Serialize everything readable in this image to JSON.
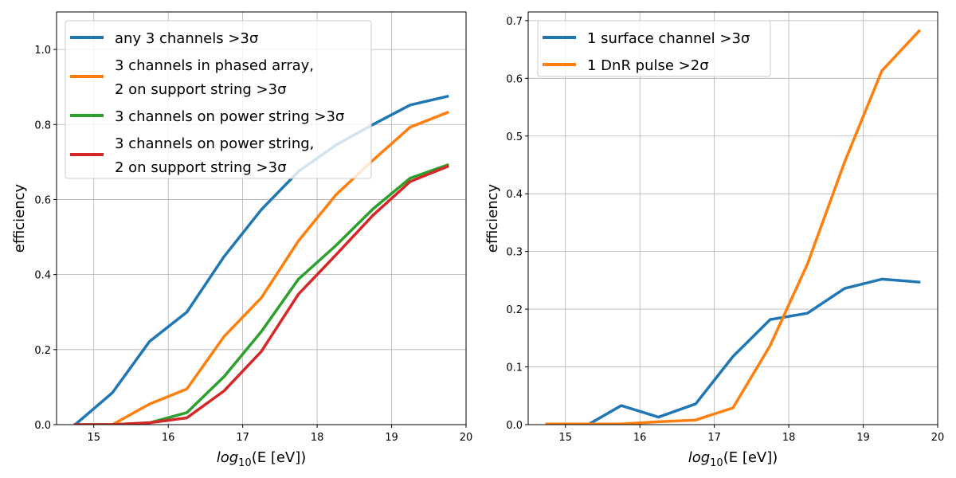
{
  "chart_data": [
    {
      "type": "line",
      "title": "",
      "xlabel": "log10(E [eV])",
      "xlabel_parts": {
        "base": "log",
        "sub": "10",
        "rest": "(E [eV])"
      },
      "ylabel": "efficiency",
      "xlim": [
        14.5,
        20
      ],
      "ylim": [
        0,
        1.1
      ],
      "xticks": [
        15,
        16,
        17,
        18,
        19,
        20
      ],
      "yticks": [
        0.0,
        0.2,
        0.4,
        0.6,
        0.8,
        1.0
      ],
      "ytick_labels": [
        "0.0",
        "0.2",
        "0.4",
        "0.6",
        "0.8",
        "1.0"
      ],
      "grid": true,
      "legend_position": "top-left",
      "x": [
        14.75,
        15.25,
        15.75,
        16.25,
        16.75,
        17.25,
        17.75,
        18.25,
        18.75,
        19.25,
        19.75
      ],
      "series": [
        {
          "name": "any 3 channels >3σ",
          "name_lines": [
            "any 3 channels >3σ"
          ],
          "color": "#1f77b4",
          "values": [
            0.0,
            0.085,
            0.222,
            0.3,
            0.448,
            0.573,
            0.675,
            0.745,
            0.8,
            0.852,
            0.875
          ]
        },
        {
          "name": "3 channels in phased array, 2 on support string >3σ",
          "name_lines": [
            "3 channels in phased array,",
            "2 on support string >3σ"
          ],
          "color": "#ff7f0e",
          "values": [
            0.0,
            0.0,
            0.055,
            0.095,
            0.235,
            0.338,
            0.49,
            0.612,
            0.705,
            0.793,
            0.832
          ]
        },
        {
          "name": "3 channels on power string >3σ",
          "name_lines": [
            "3 channels on power string >3σ"
          ],
          "color": "#2ca02c",
          "values": [
            0.0,
            0.0,
            0.005,
            0.032,
            0.128,
            0.248,
            0.388,
            0.477,
            0.575,
            0.657,
            0.692
          ]
        },
        {
          "name": "3 channels on power string, 2 on support string >3σ",
          "name_lines": [
            "3 channels on power string,",
            "2 on support string >3σ"
          ],
          "color": "#d62728",
          "values": [
            0.0,
            0.0,
            0.005,
            0.018,
            0.09,
            0.195,
            0.348,
            0.452,
            0.558,
            0.648,
            0.688
          ]
        }
      ]
    },
    {
      "type": "line",
      "title": "",
      "xlabel": "log10(E [eV])",
      "xlabel_parts": {
        "base": "log",
        "sub": "10",
        "rest": "(E [eV])"
      },
      "ylabel": "efficiency",
      "xlim": [
        14.5,
        20
      ],
      "ylim": [
        0,
        0.715
      ],
      "xticks": [
        15,
        16,
        17,
        18,
        19,
        20
      ],
      "yticks": [
        0.0,
        0.1,
        0.2,
        0.3,
        0.4,
        0.5,
        0.6,
        0.7
      ],
      "ytick_labels": [
        "0.0",
        "0.1",
        "0.2",
        "0.3",
        "0.4",
        "0.5",
        "0.6",
        "0.7"
      ],
      "grid": true,
      "legend_position": "top-left",
      "x": [
        14.75,
        15.25,
        15.75,
        16.25,
        16.75,
        17.25,
        17.75,
        18.25,
        18.75,
        19.25,
        19.75
      ],
      "series": [
        {
          "name": "1 surface channel >3σ",
          "name_lines": [
            "1 surface channel >3σ"
          ],
          "color": "#1f77b4",
          "values": [
            -0.004,
            -0.004,
            0.033,
            0.013,
            0.036,
            0.118,
            0.182,
            0.193,
            0.236,
            0.252,
            0.247
          ]
        },
        {
          "name": "1 DnR pulse >2σ",
          "name_lines": [
            "1 DnR pulse >2σ"
          ],
          "color": "#ff7f0e",
          "values": [
            0.001,
            0.001,
            0.001,
            0.005,
            0.008,
            0.029,
            0.137,
            0.278,
            0.455,
            0.613,
            0.682
          ]
        }
      ]
    }
  ]
}
